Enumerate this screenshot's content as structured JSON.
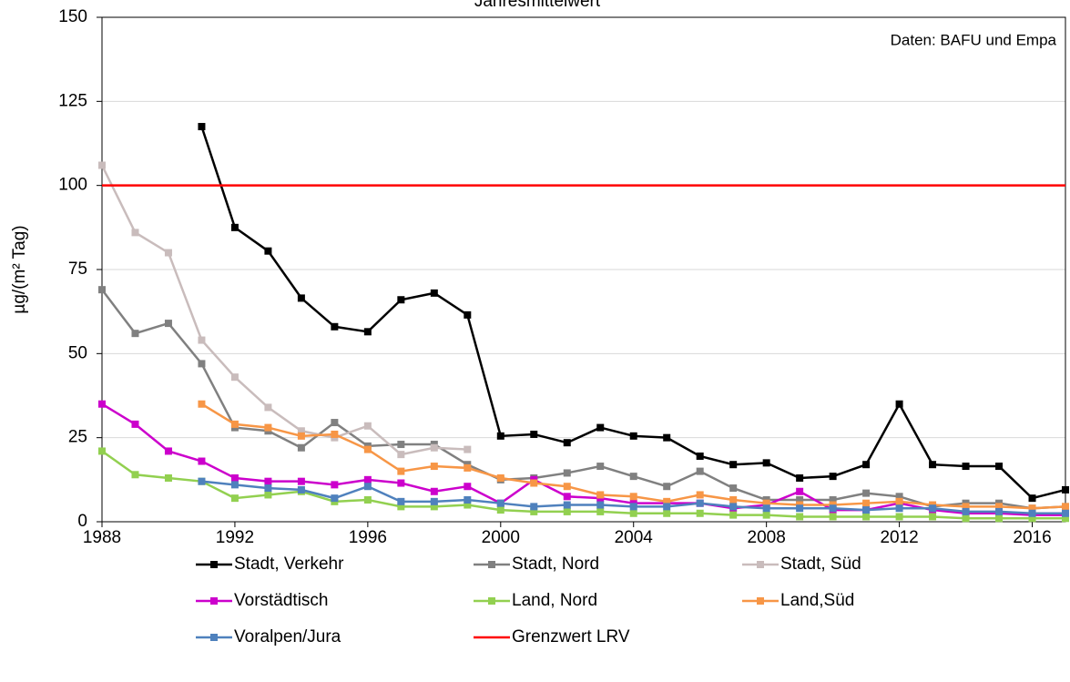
{
  "chart_data": {
    "type": "line",
    "title": "Jahresmittelwert",
    "annotation": "Daten: BAFU und Empa",
    "y_label": "µg/(m² Tag)",
    "x": [
      1988,
      1989,
      1990,
      1991,
      1992,
      1993,
      1994,
      1995,
      1996,
      1997,
      1998,
      1999,
      2000,
      2001,
      2002,
      2003,
      2004,
      2005,
      2006,
      2007,
      2008,
      2009,
      2010,
      2011,
      2012,
      2013,
      2014,
      2015,
      2016,
      2017
    ],
    "xlim": [
      1988,
      2017
    ],
    "xticks": [
      1988,
      1992,
      1996,
      2000,
      2004,
      2008,
      2012,
      2016
    ],
    "ylim": [
      0,
      150
    ],
    "yticks": [
      0,
      25,
      50,
      75,
      100,
      125,
      150
    ],
    "grid": true,
    "series": [
      {
        "name": "Stadt, Verkehr",
        "color": "#000000",
        "markers": true,
        "values": [
          null,
          null,
          null,
          117.5,
          87.5,
          80.5,
          66.5,
          58,
          56.5,
          66,
          68,
          61.5,
          25.5,
          26,
          23.5,
          28,
          25.5,
          25,
          19.5,
          17,
          17.5,
          13,
          13.5,
          17,
          35,
          17,
          16.5,
          16.5,
          7,
          9.5
        ]
      },
      {
        "name": "Stadt, Nord",
        "color": "#808080",
        "markers": true,
        "values": [
          69,
          56,
          59,
          47,
          28,
          27,
          22,
          29.5,
          22.5,
          23,
          23,
          17,
          12.5,
          13,
          14.5,
          16.5,
          13.5,
          10.5,
          15,
          10,
          6.5,
          6.5,
          6.5,
          8.5,
          7.5,
          4.5,
          5.5,
          5.5,
          4,
          4.5
        ]
      },
      {
        "name": "Stadt, Süd",
        "color": "#c9bcbc",
        "markers": true,
        "values": [
          106,
          86,
          80,
          54,
          43,
          34,
          27,
          25,
          28.5,
          20,
          22,
          21.5,
          null,
          null,
          null,
          null,
          null,
          null,
          null,
          null,
          null,
          null,
          null,
          null,
          null,
          null,
          null,
          null,
          null,
          null
        ]
      },
      {
        "name": "Vorstädtisch",
        "color": "#cc00cc",
        "markers": true,
        "values": [
          35,
          29,
          21,
          18,
          13,
          12,
          12,
          11,
          12.5,
          11.5,
          9,
          10.5,
          5.5,
          12.5,
          7.5,
          7,
          5.5,
          5.5,
          5.5,
          4,
          5,
          9,
          3.5,
          3.5,
          5.5,
          3.5,
          2.5,
          2.5,
          2,
          2
        ]
      },
      {
        "name": "Land, Nord",
        "color": "#92d050",
        "markers": true,
        "values": [
          21,
          14,
          13,
          12,
          7,
          8,
          9,
          6,
          6.5,
          4.5,
          4.5,
          5,
          3.5,
          3,
          3,
          3,
          2.5,
          2.5,
          2.5,
          2,
          2,
          1.5,
          1.5,
          1.5,
          1.5,
          1.5,
          1,
          1,
          1,
          1
        ]
      },
      {
        "name": "Land,Süd",
        "color": "#f79646",
        "markers": true,
        "values": [
          null,
          null,
          null,
          35,
          29,
          28,
          25.5,
          26,
          21.5,
          15,
          16.5,
          16,
          13,
          11.5,
          10.5,
          8,
          7.5,
          6,
          8,
          6.5,
          5.5,
          5,
          5,
          5.5,
          6,
          5,
          4.5,
          4.5,
          4,
          4.5
        ]
      },
      {
        "name": "Voralpen/Jura",
        "color": "#4f81bd",
        "markers": true,
        "values": [
          null,
          null,
          null,
          12,
          11,
          10,
          9.5,
          7,
          10.5,
          6,
          6,
          6.5,
          5.5,
          4.5,
          5,
          5,
          4.5,
          4.5,
          5.5,
          4.5,
          4,
          4,
          4,
          3.5,
          4,
          4,
          3,
          3,
          2.5,
          2.5
        ]
      },
      {
        "name": "Grenzwert LRV",
        "color": "#ff0000",
        "markers": false,
        "values": [
          100,
          100,
          100,
          100,
          100,
          100,
          100,
          100,
          100,
          100,
          100,
          100,
          100,
          100,
          100,
          100,
          100,
          100,
          100,
          100,
          100,
          100,
          100,
          100,
          100,
          100,
          100,
          100,
          100,
          100
        ]
      }
    ]
  }
}
